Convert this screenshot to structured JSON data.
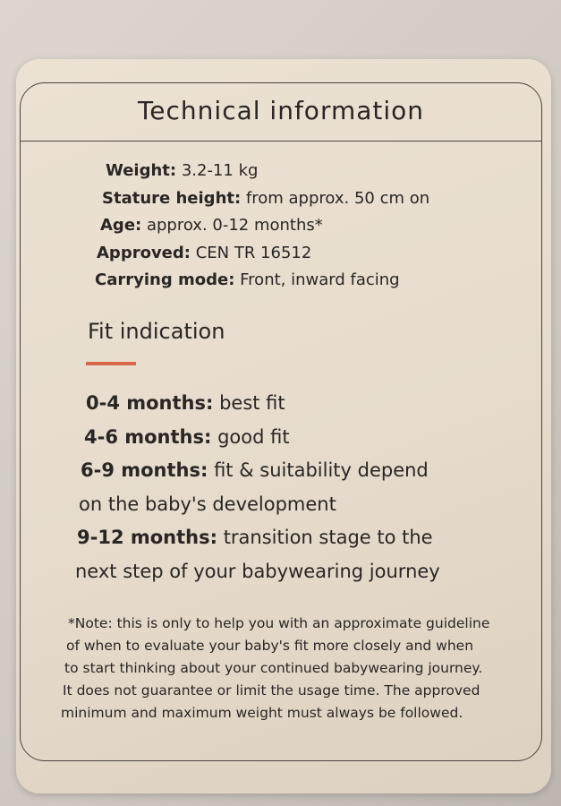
{
  "title": "Technical information",
  "specs": [
    {
      "label": "Weight:",
      "value": " 3.2-11 kg"
    },
    {
      "label": "Stature height:",
      "value": " from approx. 50 cm on"
    },
    {
      "label": "Age:",
      "value": " approx. 0-12 months*"
    },
    {
      "label": "Approved:",
      "value": " CEN TR 16512"
    },
    {
      "label": "Carrying mode:",
      "value": " Front, inward facing"
    }
  ],
  "fit_heading": "Fit indication",
  "accent_color": "#d9674a",
  "fit": [
    {
      "label": "0-4 months:",
      "value": " best fit"
    },
    {
      "label": "4-6 months:",
      "value": " good fit"
    },
    {
      "label": "6-9 months:",
      "value": " fit & suitability depend",
      "cont": "on the baby's development"
    },
    {
      "label": "9-12 months:",
      "value": " transition stage to the",
      "cont": "next step of your babywearing journey"
    }
  ],
  "note": [
    "*Note: this is only to help you with an approximate guideline",
    "of when to evaluate your baby's fit more closely and when",
    "to start thinking about your continued babywearing journey.",
    "It does not guarantee or limit the usage time. The approved",
    "minimum and maximum weight must always be followed."
  ]
}
